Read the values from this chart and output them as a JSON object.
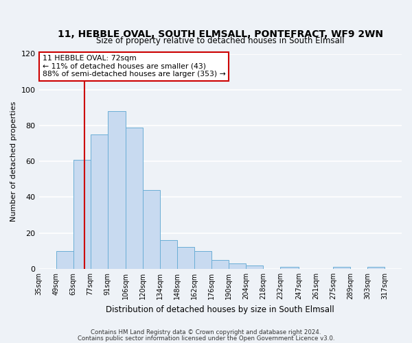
{
  "title": "11, HEBBLE OVAL, SOUTH ELMSALL, PONTEFRACT, WF9 2WN",
  "subtitle": "Size of property relative to detached houses in South Elmsall",
  "xlabel": "Distribution of detached houses by size in South Elmsall",
  "ylabel": "Number of detached properties",
  "bar_color": "#c8daf0",
  "bar_edge_color": "#6baed6",
  "bin_labels": [
    "35sqm",
    "49sqm",
    "63sqm",
    "77sqm",
    "91sqm",
    "106sqm",
    "120sqm",
    "134sqm",
    "148sqm",
    "162sqm",
    "176sqm",
    "190sqm",
    "204sqm",
    "218sqm",
    "232sqm",
    "247sqm",
    "261sqm",
    "275sqm",
    "289sqm",
    "303sqm",
    "317sqm"
  ],
  "bar_heights": [
    0,
    10,
    61,
    75,
    88,
    79,
    44,
    16,
    12,
    10,
    5,
    3,
    2,
    0,
    1,
    0,
    0,
    1,
    0,
    1,
    0
  ],
  "ylim": [
    0,
    120
  ],
  "yticks": [
    0,
    20,
    40,
    60,
    80,
    100,
    120
  ],
  "vline_x": 72,
  "vline_color": "#cc0000",
  "annotation_title": "11 HEBBLE OVAL: 72sqm",
  "annotation_line1": "← 11% of detached houses are smaller (43)",
  "annotation_line2": "88% of semi-detached houses are larger (353) →",
  "footer_line1": "Contains HM Land Registry data © Crown copyright and database right 2024.",
  "footer_line2": "Contains public sector information licensed under the Open Government Licence v3.0.",
  "background_color": "#eef2f7",
  "plot_background_color": "#eef2f7",
  "grid_color": "#ffffff",
  "bin_edges": [
    35,
    49,
    63,
    77,
    91,
    106,
    120,
    134,
    148,
    162,
    176,
    190,
    204,
    218,
    232,
    247,
    261,
    275,
    289,
    303,
    317,
    331
  ]
}
